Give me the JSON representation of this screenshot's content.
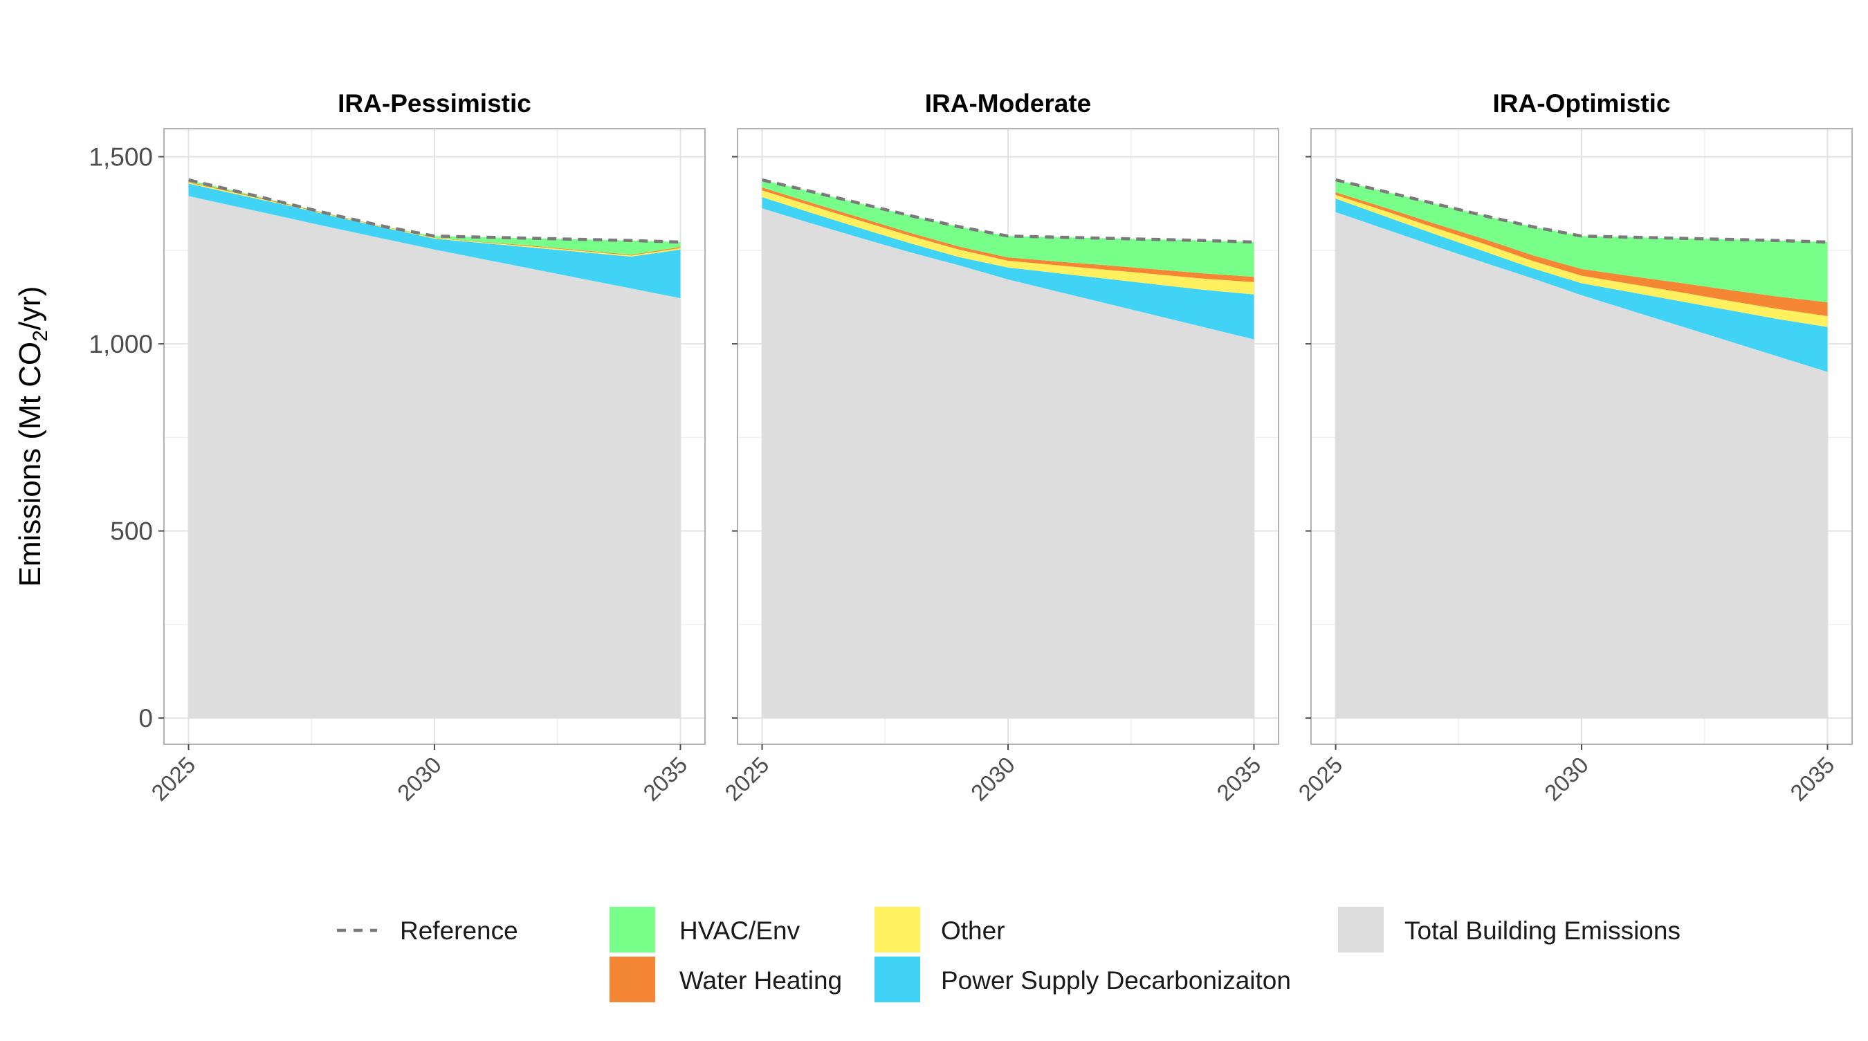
{
  "chart_data": {
    "type": "area",
    "ylabel": "Emissions (Mt CO2/yr)",
    "ylabel_parts": {
      "pre": "Emissions (Mt CO",
      "sub": "2",
      "post": "/yr)"
    },
    "ylim": [
      -70,
      1575
    ],
    "yticks": [
      0,
      500,
      1000,
      1500
    ],
    "ytick_labels": [
      "0",
      "500",
      "1,000",
      "1,500"
    ],
    "x": [
      2025,
      2026,
      2027,
      2028,
      2029,
      2030,
      2031,
      2032,
      2033,
      2034,
      2035
    ],
    "xticks": [
      2025,
      2030,
      2035
    ],
    "xtick_labels": [
      "2025",
      "2030",
      "2035"
    ],
    "grid": true,
    "legend_position": "bottom",
    "legend": {
      "reference": "Reference",
      "hvac": "HVAC/Env",
      "water": "Water Heating",
      "other": "Other",
      "power": "Power Supply Decarbonizaiton",
      "total": "Total Building Emissions"
    },
    "colors": {
      "total": "#dddddd",
      "power": "#41d3f5",
      "other": "#fff060",
      "water": "#f58634",
      "hvac": "#78ff8a",
      "reference": "#7a7a7a"
    },
    "stack_order": [
      "total",
      "power",
      "other",
      "water",
      "hvac"
    ],
    "reference": [
      1438,
      1407,
      1375,
      1343,
      1313,
      1288,
      1285,
      1282,
      1279,
      1276,
      1272
    ],
    "panels": [
      {
        "title": "IRA-Pessimistic",
        "series": {
          "total": [
            1395,
            1366,
            1337,
            1308,
            1280,
            1252,
            1226,
            1200,
            1174,
            1148,
            1122
          ],
          "power": [
            33,
            33,
            33,
            31,
            30,
            29,
            43,
            57,
            71,
            85,
            130
          ],
          "other": [
            3,
            3,
            2,
            2,
            2,
            2,
            2,
            3,
            3,
            3,
            4
          ],
          "water": [
            2,
            2,
            2,
            1,
            1,
            1,
            1,
            2,
            2,
            2,
            3
          ],
          "hvac": [
            5,
            3,
            1,
            1,
            0,
            4,
            13,
            20,
            29,
            38,
            13
          ]
        }
      },
      {
        "title": "IRA-Moderate",
        "series": {
          "total": [
            1362,
            1322,
            1283,
            1245,
            1210,
            1172,
            1140,
            1108,
            1076,
            1044,
            1012
          ],
          "power": [
            30,
            28,
            26,
            24,
            22,
            32,
            49,
            66,
            83,
            100,
            120
          ],
          "other": [
            18,
            19,
            20,
            20,
            20,
            18,
            21,
            24,
            27,
            30,
            33
          ],
          "water": [
            8,
            8,
            8,
            8,
            8,
            9,
            10,
            12,
            13,
            14,
            14
          ],
          "hvac": [
            20,
            30,
            38,
            46,
            53,
            57,
            65,
            72,
            80,
            88,
            93
          ]
        }
      },
      {
        "title": "IRA-Optimistic",
        "series": {
          "total": [
            1352,
            1307,
            1262,
            1218,
            1175,
            1130,
            1089,
            1048,
            1007,
            966,
            925
          ],
          "power": [
            36,
            34,
            32,
            30,
            27,
            32,
            49,
            66,
            83,
            100,
            120
          ],
          "other": [
            10,
            14,
            17,
            20,
            20,
            20,
            22,
            24,
            25,
            27,
            29
          ],
          "water": [
            7,
            9,
            11,
            13,
            15,
            18,
            21,
            25,
            29,
            33,
            37
          ],
          "hvac": [
            33,
            43,
            53,
            62,
            76,
            88,
            104,
            119,
            135,
            150,
            161
          ]
        }
      }
    ]
  }
}
